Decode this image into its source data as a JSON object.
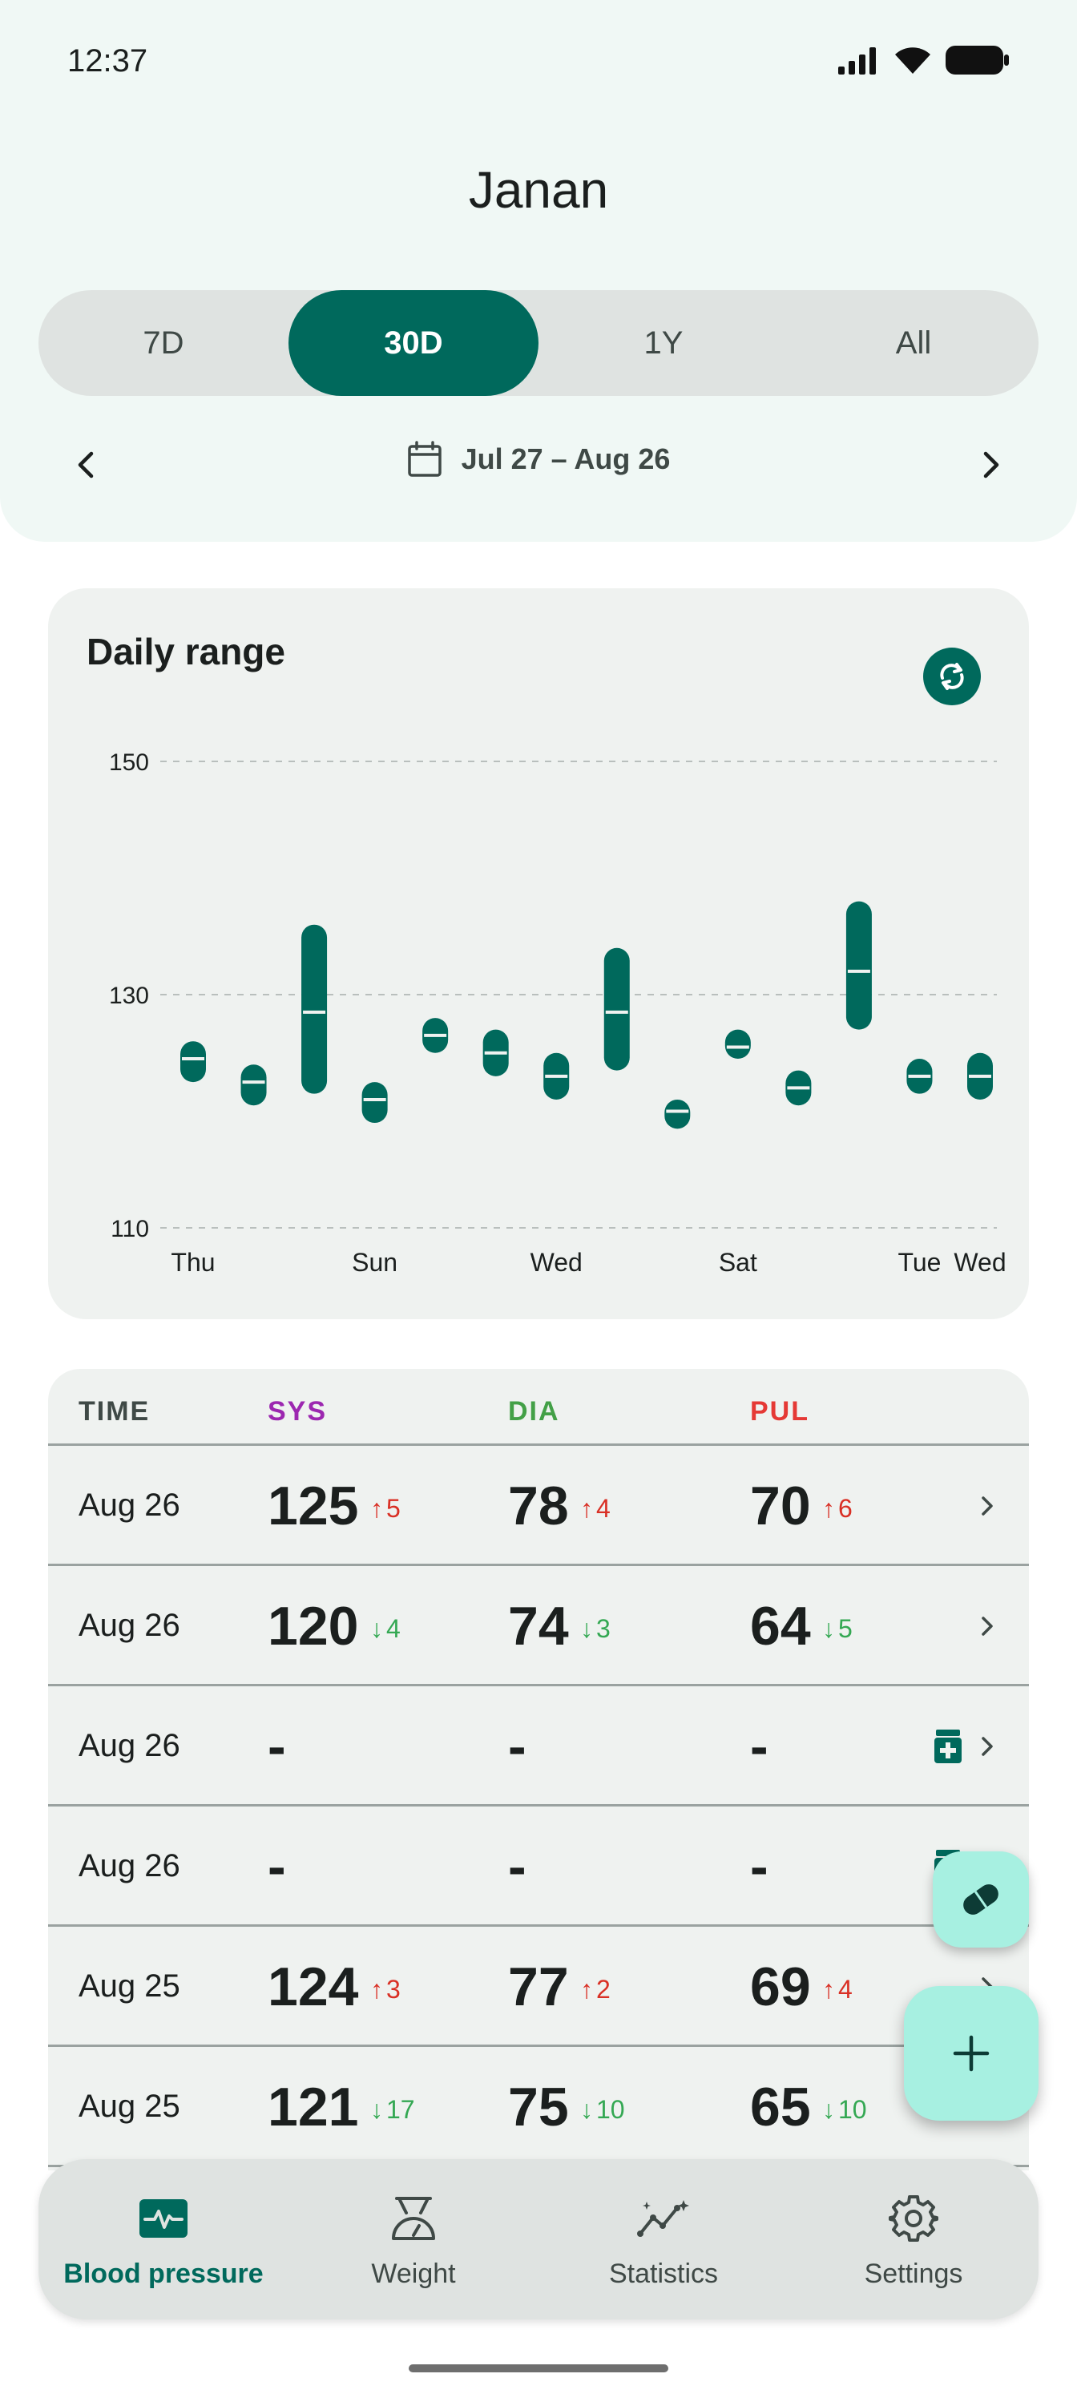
{
  "status_bar": {
    "time": "12:37",
    "icons": [
      "signal-icon",
      "wifi-icon",
      "battery-icon"
    ]
  },
  "header": {
    "title": "Janan"
  },
  "range_tabs": [
    {
      "label": "7D",
      "active": false
    },
    {
      "label": "30D",
      "active": true
    },
    {
      "label": "1Y",
      "active": false
    },
    {
      "label": "All",
      "active": false
    }
  ],
  "date_range": {
    "label": "Jul 27 – Aug 26",
    "prev_icon": "chevron-left-icon",
    "next_icon": "chevron-right-icon"
  },
  "daily_range_card": {
    "title": "Daily range",
    "refresh_icon": "refresh-icon"
  },
  "chart_data": {
    "type": "range-bar",
    "title": "Daily range",
    "ylim": [
      110,
      150
    ],
    "yticks": [
      150,
      130,
      110
    ],
    "grid": true,
    "color": "#00695c",
    "xticks": [
      {
        "label": "Thu",
        "at": 0
      },
      {
        "label": "Sun",
        "at": 3
      },
      {
        "label": "Wed",
        "at": 6
      },
      {
        "label": "Sat",
        "at": 9
      },
      {
        "label": "Tue",
        "at": 12
      },
      {
        "label": "Wed",
        "at": 13
      }
    ],
    "ranges": [
      {
        "low": 122.5,
        "high": 126,
        "mid": 124.5
      },
      {
        "low": 120.5,
        "high": 124,
        "mid": 122.5
      },
      {
        "low": 121.5,
        "high": 136,
        "mid": 128.5
      },
      {
        "low": 119,
        "high": 122.5,
        "mid": 121
      },
      {
        "low": 125,
        "high": 128,
        "mid": 126.5
      },
      {
        "low": 123,
        "high": 127,
        "mid": 125
      },
      {
        "low": 121,
        "high": 125,
        "mid": 123
      },
      {
        "low": 123.5,
        "high": 134,
        "mid": 128.5
      },
      {
        "low": 118.5,
        "high": 121,
        "mid": 120
      },
      {
        "low": 124.5,
        "high": 127,
        "mid": 125.5
      },
      {
        "low": 120.5,
        "high": 123.5,
        "mid": 122
      },
      {
        "low": 127,
        "high": 138,
        "mid": 132
      },
      {
        "low": 121.5,
        "high": 124.5,
        "mid": 123
      },
      {
        "low": 121,
        "high": 125,
        "mid": 123
      }
    ]
  },
  "table": {
    "headers": [
      {
        "label": "TIME",
        "color": "#3f4946"
      },
      {
        "label": "SYS",
        "color": "#9c27b0"
      },
      {
        "label": "DIA",
        "color": "#43a047"
      },
      {
        "label": "PUL",
        "color": "#e53935"
      }
    ],
    "rows": [
      {
        "time": "Aug 26",
        "sys": "125",
        "sys_delta": "5",
        "sys_dir": "up",
        "dia": "78",
        "dia_delta": "4",
        "dia_dir": "up",
        "pul": "70",
        "pul_delta": "6",
        "pul_dir": "up",
        "medication": false
      },
      {
        "time": "Aug 26",
        "sys": "120",
        "sys_delta": "4",
        "sys_dir": "down",
        "dia": "74",
        "dia_delta": "3",
        "dia_dir": "down",
        "pul": "64",
        "pul_delta": "5",
        "pul_dir": "down",
        "medication": false
      },
      {
        "time": "Aug 26",
        "sys": "-",
        "sys_delta": "",
        "sys_dir": "",
        "dia": "-",
        "dia_delta": "",
        "dia_dir": "",
        "pul": "-",
        "pul_delta": "",
        "pul_dir": "",
        "medication": true
      },
      {
        "time": "Aug 26",
        "sys": "-",
        "sys_delta": "",
        "sys_dir": "",
        "dia": "-",
        "dia_delta": "",
        "dia_dir": "",
        "pul": "-",
        "pul_delta": "",
        "pul_dir": "",
        "medication": true
      },
      {
        "time": "Aug 25",
        "sys": "124",
        "sys_delta": "3",
        "sys_dir": "up",
        "dia": "77",
        "dia_delta": "2",
        "dia_dir": "up",
        "pul": "69",
        "pul_delta": "4",
        "pul_dir": "up",
        "medication": false
      },
      {
        "time": "Aug 25",
        "sys": "121",
        "sys_delta": "17",
        "sys_dir": "down",
        "dia": "75",
        "dia_delta": "10",
        "dia_dir": "down",
        "pul": "65",
        "pul_delta": "10",
        "pul_dir": "down",
        "medication": false
      }
    ]
  },
  "fabs": {
    "medication_icon": "pill-icon",
    "add_icon": "plus-icon"
  },
  "bottom_nav": [
    {
      "label": "Blood pressure",
      "icon": "heart-monitor-icon",
      "active": true
    },
    {
      "label": "Weight",
      "icon": "scale-icon",
      "active": false
    },
    {
      "label": "Statistics",
      "icon": "statistics-icon",
      "active": false
    },
    {
      "label": "Settings",
      "icon": "gear-icon",
      "active": false
    }
  ],
  "colors": {
    "primary": "#00695c",
    "fab": "#a7f0e1",
    "up": "#d93025",
    "down": "#34a853"
  }
}
